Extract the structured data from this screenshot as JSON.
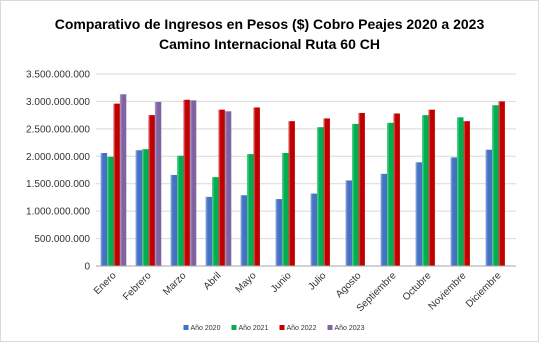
{
  "chart_data": {
    "type": "bar",
    "title": "Comparativo de Ingresos en Pesos ($) Cobro Peajes 2020 a 2023",
    "subtitle": "Camino Internacional Ruta 60 CH",
    "categories": [
      "Enero",
      "Febrero",
      "Marzo",
      "Abril",
      "Mayo",
      "Junio",
      "Julio",
      "Agosto",
      "Septiembre",
      "Octubre",
      "Noviembre",
      "Diciembre"
    ],
    "ylim": [
      0,
      3500000000
    ],
    "yticks": [
      0,
      500000000,
      1000000000,
      1500000000,
      2000000000,
      2500000000,
      3000000000,
      3500000000
    ],
    "ytick_labels": [
      "0",
      "500.000.000",
      "1.000.000.000",
      "1.500.000.000",
      "2.000.000.000",
      "2.500.000.000",
      "3.000.000.000",
      "3.500.000.000"
    ],
    "grid": true,
    "legend_position": "bottom",
    "series": [
      {
        "name": "Año 2020",
        "color": "#4472c4",
        "values": [
          2060000000,
          2110000000,
          1660000000,
          1260000000,
          1290000000,
          1220000000,
          1320000000,
          1560000000,
          1680000000,
          1890000000,
          1980000000,
          2120000000
        ]
      },
      {
        "name": "Año 2021",
        "color": "#00b050",
        "values": [
          1990000000,
          2130000000,
          2010000000,
          1620000000,
          2040000000,
          2060000000,
          2530000000,
          2590000000,
          2610000000,
          2750000000,
          2710000000,
          2930000000
        ]
      },
      {
        "name": "Año 2022",
        "color": "#c00000",
        "values": [
          2960000000,
          2750000000,
          3030000000,
          2850000000,
          2890000000,
          2640000000,
          2690000000,
          2790000000,
          2780000000,
          2850000000,
          2640000000,
          3000000000
        ]
      },
      {
        "name": "Año 2023",
        "color": "#8064a2",
        "values": [
          3130000000,
          2990000000,
          3020000000,
          2820000000,
          null,
          null,
          null,
          null,
          null,
          null,
          null,
          null
        ]
      }
    ]
  }
}
